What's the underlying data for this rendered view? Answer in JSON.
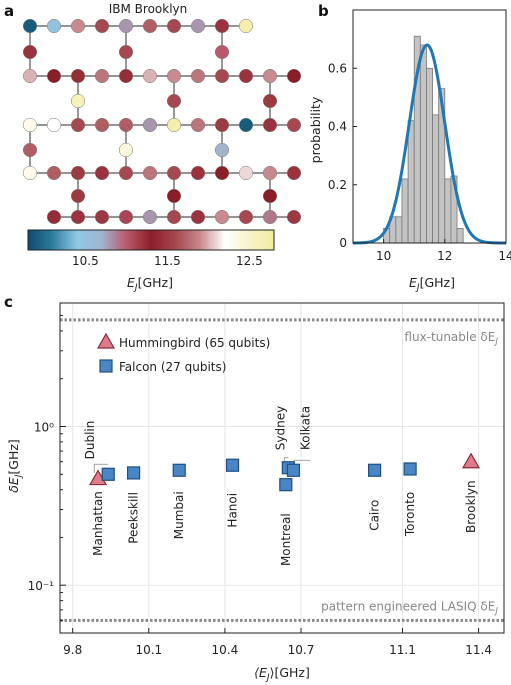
{
  "panel_labels": {
    "a": "a",
    "b": "b",
    "c": "c"
  },
  "chart_data": [
    {
      "type": "heatmap",
      "panel": "a",
      "title": "IBM Brooklyn",
      "colorbar": {
        "ticks": [
          "10.5",
          "11.5",
          "12.5"
        ],
        "label_main": "E",
        "label_sub": "J",
        "label_unit": "[GHz]",
        "range": [
          9.8,
          12.8
        ],
        "colors": [
          "#0e4a6b",
          "#2d7f9f",
          "#8fc8e6",
          "#a0b4cc",
          "#b85a6b",
          "#8b1f28",
          "#a5484f",
          "#c78b8d",
          "#ffffff",
          "#f6f3c8",
          "#f1ec9e"
        ]
      },
      "qubit_ej": [
        [
          9.9,
          10.5,
          11.9,
          11.6,
          10.8,
          11.7,
          11.6,
          10.8,
          11.2,
          12.7
        ],
        [
          11.2,
          11.6,
          11.0
        ],
        [
          12.0,
          11.3,
          11.4,
          11.8,
          11.4,
          12.0,
          11.9,
          11.8,
          11.6,
          11.2,
          11.9,
          11.3
        ],
        [
          12.6,
          11.6,
          11.5
        ],
        [
          12.3,
          12.2,
          11.6,
          11.7,
          11.7,
          10.8,
          12.7,
          11.8,
          11.5,
          9.9,
          11.2,
          11.6
        ],
        [
          11.7,
          12.4,
          10.7,
          11.7
        ],
        [
          12.3,
          11.7,
          11.5,
          11.2,
          11.6,
          11.8,
          11.6,
          11.2,
          11.3,
          12.1,
          11.9,
          11.2
        ],
        [
          11.5,
          11.3,
          11.3
        ],
        [
          11.4,
          11.2,
          11.5,
          11.1,
          10.8,
          11.6,
          11.2,
          11.9,
          11.6,
          10.9,
          11.5
        ]
      ]
    },
    {
      "type": "bar",
      "panel": "b",
      "xlabel_main": "E",
      "xlabel_sub": "J",
      "xlabel_unit": "[GHz]",
      "ylabel": "probability",
      "xlim": [
        9,
        14
      ],
      "ylim": [
        0,
        0.8
      ],
      "xticks": [
        "10",
        "12",
        "14"
      ],
      "yticks": [
        "0",
        "0.2",
        "0.4",
        "0.6"
      ],
      "histogram": {
        "bin_edges": [
          10.0,
          10.2,
          10.4,
          10.6,
          10.8,
          11.0,
          11.2,
          11.4,
          11.6,
          11.8,
          12.0,
          12.2,
          12.4,
          12.6
        ],
        "values": [
          0.05,
          0.09,
          0.09,
          0.22,
          0.42,
          0.71,
          0.68,
          0.6,
          0.44,
          0.53,
          0.22,
          0.23,
          0.05
        ]
      },
      "gaussian_fit": {
        "mean": 11.42,
        "sd": 0.58,
        "peak": 0.68,
        "color": "#1f77b4"
      }
    },
    {
      "type": "scatter",
      "panel": "c",
      "xlabel_main": "⟨E",
      "xlabel_sub": "J",
      "xlabel_unit": "⟩[GHz]",
      "ylabel_main": "δE",
      "ylabel_sub": "J",
      "ylabel_unit": "[GHz]",
      "xlim": [
        9.75,
        11.5
      ],
      "ylim": [
        0.05,
        6
      ],
      "yscale": "log",
      "xticks": [
        "9.8",
        "10.1",
        "10.4",
        "10.7",
        "11.1",
        "11.4"
      ],
      "xtick_values": [
        9.8,
        10.1,
        10.4,
        10.7,
        11.1,
        11.4
      ],
      "yticks": [
        "10⁰",
        "10⁻¹"
      ],
      "ytick_values": [
        1,
        0.1
      ],
      "legend": [
        {
          "label": "Hummingbird (65 qubits)",
          "marker": "triangle"
        },
        {
          "label": "Falcon (27 qubits)",
          "marker": "square"
        }
      ],
      "hlines": [
        {
          "y": 4.7,
          "label_main": "flux-tunable δE",
          "label_sub": "J"
        },
        {
          "y": 0.06,
          "label_main": "pattern engineered LASIQ δE",
          "label_sub": "J"
        }
      ],
      "series": [
        {
          "name": "Hummingbird (65 qubits)",
          "color": "#e07b8a",
          "points": [
            {
              "label": "Manhattan",
              "x": 9.9,
              "y": 0.47
            },
            {
              "label": "Brooklyn",
              "x": 11.37,
              "y": 0.6
            }
          ]
        },
        {
          "name": "Falcon (27 qubits)",
          "color": "#4a86c4",
          "points": [
            {
              "label": "Dublin",
              "x": 9.94,
              "y": 0.5
            },
            {
              "label": "Peekskill",
              "x": 10.04,
              "y": 0.51
            },
            {
              "label": "Mumbai",
              "x": 10.22,
              "y": 0.53
            },
            {
              "label": "Hanoi",
              "x": 10.43,
              "y": 0.57
            },
            {
              "label": "Sydney",
              "x": 10.65,
              "y": 0.55
            },
            {
              "label": "Kolkata",
              "x": 10.67,
              "y": 0.53
            },
            {
              "label": "Montreal",
              "x": 10.64,
              "y": 0.43
            },
            {
              "label": "Cairo",
              "x": 10.99,
              "y": 0.53
            },
            {
              "label": "Toronto",
              "x": 11.13,
              "y": 0.54
            }
          ]
        }
      ]
    }
  ]
}
